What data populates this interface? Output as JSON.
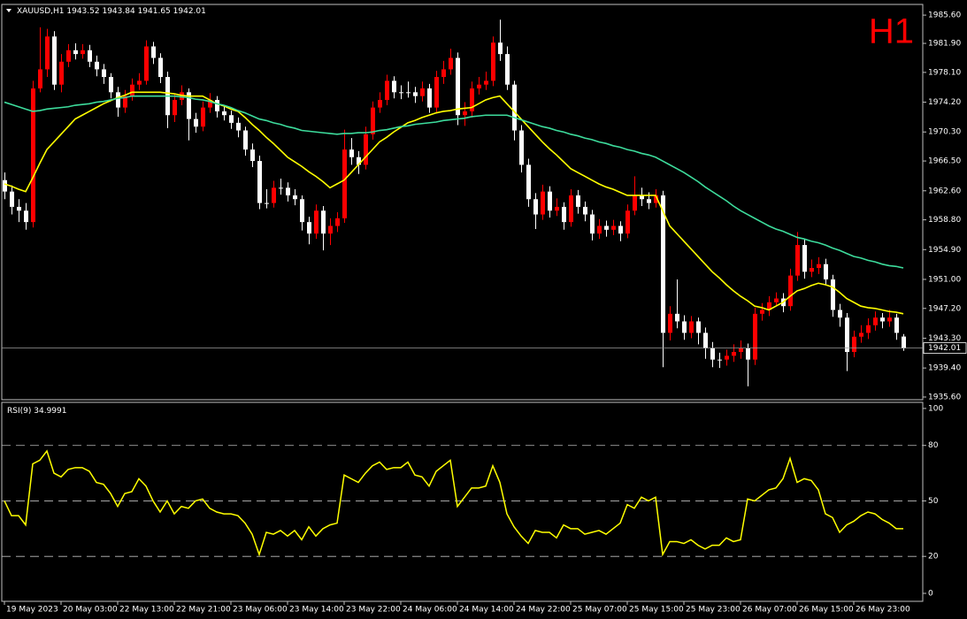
{
  "chart_data": [
    {
      "type": "candlestick",
      "symbol": "XAUUSD,H1",
      "timeframe": "H1",
      "up_color": "#ff0000",
      "down_color": "#ffffff",
      "categories": [
        "19 May 2023",
        null,
        null,
        null,
        null,
        null,
        null,
        null,
        "20 May 03:00",
        null,
        null,
        null,
        null,
        null,
        null,
        null,
        "22 May 13:00",
        null,
        null,
        null,
        null,
        null,
        null,
        null,
        "22 May 21:00",
        null,
        null,
        null,
        null,
        null,
        null,
        null,
        "23 May 06:00",
        null,
        null,
        null,
        null,
        null,
        null,
        null,
        "23 May 14:00",
        null,
        null,
        null,
        null,
        null,
        null,
        null,
        "23 May 22:00",
        null,
        null,
        null,
        null,
        null,
        null,
        null,
        "24 May 06:00",
        null,
        null,
        null,
        null,
        null,
        null,
        null,
        "24 May 14:00",
        null,
        null,
        null,
        null,
        null,
        null,
        null,
        "24 May 22:00",
        null,
        null,
        null,
        null,
        null,
        null,
        null,
        "25 May 07:00",
        null,
        null,
        null,
        null,
        null,
        null,
        null,
        "25 May 15:00",
        null,
        null,
        null,
        null,
        null,
        null,
        null,
        "25 May 23:00",
        null,
        null,
        null,
        null,
        null,
        null,
        null,
        "26 May 07:00",
        null,
        null,
        null,
        null,
        null,
        null,
        null,
        "26 May 15:00",
        null,
        null,
        null,
        null,
        null,
        null,
        null,
        "26 May 23:00",
        null,
        null,
        null,
        null,
        null,
        null,
        null
      ],
      "open": [
        1964,
        1962.5,
        1960.5,
        1960,
        1958.5,
        1976,
        1978.5,
        1982.8,
        1976.5,
        1979.5,
        1981,
        1980.5,
        1981,
        1979.5,
        1978.5,
        1977.5,
        1975.5,
        1973.5,
        1975,
        1976.5,
        1977,
        1981.5,
        1980,
        1977.5,
        1972.5,
        1974.5,
        1975.5,
        1972,
        1971,
        1973.5,
        1974.5,
        1973,
        1972.5,
        1971.5,
        1970.5,
        1968,
        1966.5,
        1961,
        1961,
        1963,
        1963,
        1962,
        1961.5,
        1958.5,
        1957,
        1960,
        1957,
        1958,
        1959,
        1968,
        1967,
        1966,
        1970,
        1973.5,
        1974.5,
        1977,
        1975.5,
        1975.5,
        1975.5,
        1975,
        1976,
        1973.5,
        1977.5,
        1978.5,
        1980,
        1972.5,
        1973,
        1976,
        1976.5,
        1977,
        1982,
        1980.5,
        1976.5,
        1970.5,
        1966,
        1961.5,
        1959.5,
        1962.5,
        1960,
        1960.5,
        1958.5,
        1962,
        1960.5,
        1959.5,
        1957,
        1958,
        1957.5,
        1958,
        1957,
        1960,
        1962,
        1961.5,
        1961,
        1962,
        1944,
        1946.5,
        1945.5,
        1944,
        1945.5,
        1944,
        1942,
        1940.5,
        1940.5,
        1941,
        1941.5,
        1942,
        1940.5,
        1946.5,
        1947,
        1948,
        1948.5,
        1947.5,
        1951.5,
        1955.5,
        1952,
        1952.5,
        1953,
        1951,
        1947,
        1946,
        1941.5,
        1943.5,
        1944,
        1945,
        1946,
        1945.5,
        1946,
        1943.52
      ],
      "high": [
        1965,
        1963.3,
        1961.5,
        1961,
        1977,
        1984,
        1983.8,
        1983.5,
        1980.5,
        1981.8,
        1981.9,
        1981.8,
        1981.7,
        1980.3,
        1979.2,
        1978,
        1976.2,
        1975.8,
        1977.3,
        1978,
        1982.3,
        1982.1,
        1980.6,
        1978.2,
        1975.3,
        1976.4,
        1976,
        1972.8,
        1974.3,
        1975.4,
        1975,
        1973.8,
        1973.1,
        1972.2,
        1971,
        1968.8,
        1967.2,
        1962.8,
        1963.9,
        1964.2,
        1963.7,
        1962.8,
        1962,
        1959.2,
        1960.8,
        1960.6,
        1959,
        1959.8,
        1970.6,
        1969.5,
        1967.8,
        1971,
        1974.3,
        1975.5,
        1977.8,
        1977.6,
        1976.4,
        1976.9,
        1976.2,
        1976.9,
        1976.6,
        1978.3,
        1979.6,
        1981.2,
        1980.7,
        1974.2,
        1976.9,
        1977.5,
        1978.2,
        1982.8,
        1985,
        1981.5,
        1977,
        1971.2,
        1966.8,
        1962.3,
        1963.4,
        1963.2,
        1961.6,
        1961.1,
        1962.8,
        1962.7,
        1961.2,
        1960.1,
        1958.9,
        1958.7,
        1958.8,
        1958.6,
        1960.8,
        1964.5,
        1963,
        1962.4,
        1962.8,
        1962.6,
        1947.5,
        1951,
        1946.3,
        1946.2,
        1946,
        1944.7,
        1942.8,
        1941.4,
        1941.8,
        1942.5,
        1943,
        1942.6,
        1947.3,
        1947.9,
        1948.8,
        1949.3,
        1949.2,
        1952.4,
        1957.2,
        1956.2,
        1953.6,
        1953.9,
        1953.7,
        1951.6,
        1947.8,
        1946.6,
        1944.3,
        1945,
        1945.9,
        1946.8,
        1946.6,
        1947,
        1946.5,
        1943.84
      ],
      "low": [
        1961.5,
        1959.5,
        1958.5,
        1957.5,
        1957.8,
        1975.5,
        1977.5,
        1975.8,
        1975.5,
        1978.8,
        1979.8,
        1979.9,
        1978.8,
        1977.6,
        1976.6,
        1974.7,
        1972.3,
        1972.8,
        1974.4,
        1975.8,
        1976.5,
        1979.2,
        1976.7,
        1970.8,
        1971.6,
        1973.8,
        1969.2,
        1970.2,
        1970.4,
        1972.8,
        1972.2,
        1971.8,
        1970.7,
        1969.6,
        1967.2,
        1965.7,
        1960.2,
        1960.3,
        1960.4,
        1962.1,
        1961.2,
        1960.7,
        1957.4,
        1955.6,
        1956.3,
        1954.8,
        1955.5,
        1957.2,
        1958.4,
        1966,
        1964.8,
        1965.4,
        1969.3,
        1972.8,
        1973.8,
        1974.7,
        1974.6,
        1974.8,
        1974.1,
        1974.3,
        1972.8,
        1972.9,
        1976.6,
        1977.8,
        1971.2,
        1971.1,
        1972.2,
        1975.2,
        1975.8,
        1976.3,
        1979.6,
        1975.8,
        1969.2,
        1965,
        1960.5,
        1957.6,
        1958.8,
        1959.1,
        1959.3,
        1957.5,
        1957.9,
        1959.6,
        1958.6,
        1956.1,
        1956.3,
        1956.6,
        1956.8,
        1956,
        1956.4,
        1959.4,
        1960.6,
        1960.2,
        1960.4,
        1939.5,
        1943,
        1944.6,
        1943.1,
        1943.3,
        1942.5,
        1940.6,
        1939.5,
        1939.4,
        1939.7,
        1940.2,
        1940.6,
        1937,
        1939.8,
        1945.6,
        1946.2,
        1947.5,
        1946.7,
        1946.9,
        1950.8,
        1951.1,
        1951.3,
        1951.7,
        1950.2,
        1946.1,
        1944.8,
        1939,
        1940.8,
        1942.7,
        1943.2,
        1944.3,
        1944.6,
        1944.8,
        1943.1,
        1941.65
      ],
      "close": [
        1962.5,
        1960.5,
        1960,
        1958.5,
        1976,
        1978.5,
        1982.8,
        1976.5,
        1979.5,
        1981,
        1980.5,
        1981,
        1979.5,
        1978.5,
        1977.5,
        1975.5,
        1973.5,
        1975,
        1976.5,
        1977,
        1981.5,
        1980,
        1977.5,
        1972.5,
        1974.5,
        1975.5,
        1972,
        1971,
        1973.5,
        1974.5,
        1973,
        1972.5,
        1971.5,
        1970.5,
        1968,
        1966.5,
        1961,
        1961,
        1963,
        1963,
        1962,
        1961.5,
        1958.5,
        1957,
        1960,
        1957,
        1958,
        1959,
        1968,
        1967,
        1966,
        1970,
        1973.5,
        1974.5,
        1977,
        1975.5,
        1975.5,
        1975.5,
        1975,
        1976,
        1973.5,
        1977.5,
        1978.5,
        1980,
        1972.5,
        1973,
        1976,
        1976.5,
        1977,
        1982,
        1980.5,
        1976.5,
        1970.5,
        1966,
        1961.5,
        1959.5,
        1962.5,
        1960,
        1960.5,
        1958.5,
        1962,
        1960.5,
        1959.5,
        1957,
        1958,
        1957.5,
        1958,
        1957,
        1960,
        1962,
        1961.5,
        1961,
        1962,
        1944,
        1946.5,
        1945.5,
        1944,
        1945.5,
        1944,
        1942,
        1940.5,
        1940.5,
        1941,
        1941.5,
        1942,
        1940.5,
        1946.5,
        1947,
        1948,
        1948.5,
        1947.5,
        1951.5,
        1955.5,
        1952,
        1952.5,
        1953,
        1951,
        1947,
        1946,
        1941.5,
        1943.5,
        1944,
        1945,
        1946,
        1945.5,
        1946,
        1944,
        1942.01
      ],
      "lines": [
        {
          "color": "#ffff00",
          "values": [
            1963.5,
            1963.2,
            1962.8,
            1962.5,
            1964.3,
            1966.2,
            1968,
            1969,
            1970,
            1971,
            1972,
            1972.5,
            1973,
            1973.5,
            1974,
            1974.4,
            1974.8,
            1975.1,
            1975.5,
            1975.5,
            1975.5,
            1975.5,
            1975.5,
            1975.4,
            1975.3,
            1975.1,
            1975,
            1975,
            1975,
            1974.5,
            1974,
            1973.7,
            1973.3,
            1973,
            1972.2,
            1971.3,
            1970.5,
            1969.6,
            1968.8,
            1967.9,
            1967,
            1966.4,
            1965.8,
            1965.1,
            1964.5,
            1963.8,
            1963,
            1963.5,
            1964,
            1965,
            1966,
            1967,
            1968,
            1969,
            1969.6,
            1970.3,
            1970.9,
            1971.5,
            1971.8,
            1972.2,
            1972.5,
            1972.8,
            1973,
            1973.1,
            1973.3,
            1973.4,
            1973.5,
            1974,
            1974.5,
            1974.8,
            1975,
            1974,
            1973,
            1972,
            1971,
            1970,
            1969,
            1968.1,
            1967.3,
            1966.4,
            1965.5,
            1965,
            1964.5,
            1964,
            1963.5,
            1963.1,
            1962.8,
            1962.4,
            1962,
            1962,
            1962,
            1962,
            1962,
            1960,
            1958,
            1957,
            1956,
            1955,
            1954,
            1953,
            1952,
            1951.2,
            1950.3,
            1949.5,
            1948.8,
            1948.2,
            1947.5,
            1947.3,
            1947,
            1947.5,
            1948,
            1948.8,
            1949.5,
            1949.8,
            1950.2,
            1950.5,
            1950.3,
            1950,
            1949.3,
            1948.5,
            1948,
            1947.5,
            1947.3,
            1947.2,
            1947,
            1946.8,
            1946.7,
            1946.5
          ]
        },
        {
          "color": "#3ddc9c",
          "values": [
            1974.2,
            1973.9,
            1973.6,
            1973.3,
            1973,
            1973.1,
            1973.3,
            1973.4,
            1973.5,
            1973.6,
            1973.8,
            1973.9,
            1974,
            1974.2,
            1974.3,
            1974.5,
            1974.7,
            1974.8,
            1975,
            1975,
            1975,
            1975,
            1975,
            1975,
            1975,
            1974.9,
            1974.8,
            1974.6,
            1974.5,
            1974.3,
            1974,
            1973.8,
            1973.5,
            1973.1,
            1972.8,
            1972.4,
            1972,
            1971.8,
            1971.5,
            1971.3,
            1971,
            1970.8,
            1970.5,
            1970.4,
            1970.3,
            1970.2,
            1970.1,
            1970,
            1970.1,
            1970.1,
            1970.2,
            1970.2,
            1970.3,
            1970.5,
            1970.6,
            1970.8,
            1971,
            1971.1,
            1971.3,
            1971.4,
            1971.5,
            1971.6,
            1971.8,
            1971.9,
            1972,
            1972.1,
            1972.3,
            1972.4,
            1972.5,
            1972.5,
            1972.5,
            1972.5,
            1972.2,
            1971.9,
            1971.6,
            1971.3,
            1971,
            1970.8,
            1970.5,
            1970.3,
            1970,
            1969.8,
            1969.5,
            1969.3,
            1969,
            1968.8,
            1968.5,
            1968.3,
            1968,
            1967.8,
            1967.5,
            1967.3,
            1967,
            1966.5,
            1966,
            1965.5,
            1965,
            1964.4,
            1963.8,
            1963.1,
            1962.5,
            1961.9,
            1961.3,
            1960.6,
            1960,
            1959.5,
            1959,
            1958.5,
            1958,
            1957.6,
            1957.3,
            1956.9,
            1956.5,
            1956.3,
            1956,
            1955.8,
            1955.5,
            1955.1,
            1954.8,
            1954.4,
            1954,
            1953.8,
            1953.5,
            1953.3,
            1953,
            1952.8,
            1952.7,
            1952.5
          ]
        }
      ],
      "ylim": [
        1935.25,
        1987.0
      ],
      "yticks": [
        {
          "value": 1985.6,
          "label": "1985.60"
        },
        {
          "value": 1981.9,
          "label": "1981.90"
        },
        {
          "value": 1978.1,
          "label": "1978.10"
        },
        {
          "value": 1974.2,
          "label": "1974.20"
        },
        {
          "value": 1970.3,
          "label": "1970.30"
        },
        {
          "value": 1966.5,
          "label": "1966.50"
        },
        {
          "value": 1962.6,
          "label": "1962.60"
        },
        {
          "value": 1958.8,
          "label": "1958.80"
        },
        {
          "value": 1954.9,
          "label": "1954.90"
        },
        {
          "value": 1951,
          "label": "1951.00"
        },
        {
          "value": 1947.2,
          "label": "1947.20"
        },
        {
          "value": 1943.3,
          "label": "1943.30"
        },
        {
          "value": 1939.4,
          "label": "1939.40"
        },
        {
          "value": 1935.6,
          "label": "1935.60"
        }
      ]
    },
    {
      "type": "line",
      "name": "RSI(9)",
      "color": "#ffff00",
      "values": [
        50,
        42,
        42,
        37,
        70,
        72,
        77,
        65,
        63,
        67,
        68,
        68,
        66,
        60,
        59,
        54,
        47,
        54,
        55,
        62,
        58,
        50,
        44,
        50,
        43,
        47,
        46,
        50,
        51,
        46,
        44,
        43,
        43,
        42,
        38,
        32,
        21,
        33,
        32,
        34,
        31,
        34,
        29,
        36,
        31,
        35,
        37,
        38,
        64,
        62,
        60,
        65,
        69,
        71,
        67,
        68,
        68,
        71,
        64,
        63,
        58,
        66,
        69,
        72,
        47,
        52,
        57,
        57,
        58,
        69,
        60,
        43,
        36,
        31,
        27,
        34,
        33,
        33,
        30,
        37,
        35,
        35,
        32,
        33,
        34,
        32,
        35,
        38,
        48,
        46,
        52,
        50,
        52,
        21,
        28,
        28,
        27,
        29,
        26,
        24,
        26,
        26,
        30,
        28,
        29,
        51,
        50,
        53,
        56,
        57,
        62,
        73,
        60,
        62,
        61,
        56,
        43,
        41,
        33,
        37,
        39,
        42,
        44,
        43,
        40,
        38,
        35,
        34.9991
      ],
      "ylim": [
        -4.3,
        103.3
      ],
      "yticks": [
        100,
        80,
        50,
        20,
        0
      ],
      "levels": [
        80,
        50,
        20
      ]
    }
  ]
}
